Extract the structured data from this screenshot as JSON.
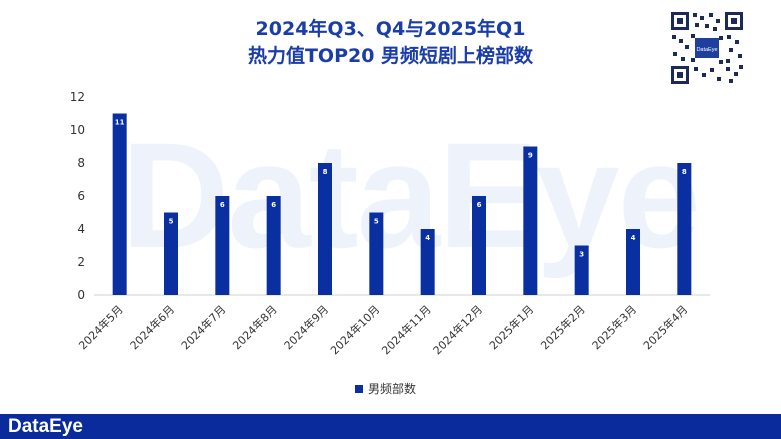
{
  "title_line1": "2024年Q3、Q4与2025年Q1",
  "title_line2": "热力值TOP20 男频短剧上榜部数",
  "watermark": "DataEye",
  "qr_label": "DataEye",
  "footer_logo": "DataEye",
  "colors": {
    "bar": "#0a2fa0",
    "title": "#1a3da8",
    "footer": "#0a2b9c"
  },
  "chart_data": {
    "type": "bar",
    "categories": [
      "2024年5月",
      "2024年6月",
      "2024年7月",
      "2024年8月",
      "2024年9月",
      "2024年10月",
      "2024年11月",
      "2024年12月",
      "2025年1月",
      "2025年2月",
      "2025年3月",
      "2025年4月"
    ],
    "series": [
      {
        "name": "男频部数",
        "values": [
          11,
          5,
          6,
          6,
          8,
          5,
          4,
          6,
          9,
          3,
          4,
          8
        ]
      }
    ],
    "yticks": [
      0,
      2,
      4,
      6,
      8,
      10,
      12
    ],
    "ylim": [
      0,
      12
    ],
    "data_labels": true,
    "grid": false,
    "legend": "bottom"
  }
}
